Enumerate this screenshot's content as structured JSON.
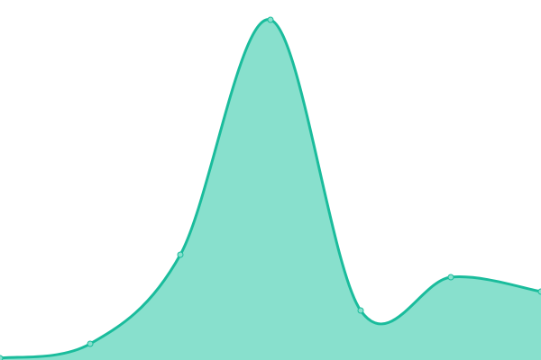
{
  "chart_data": {
    "type": "area",
    "title": "",
    "xlabel": "",
    "ylabel": "",
    "x": [
      0,
      1,
      2,
      3,
      4,
      5,
      6
    ],
    "series": [
      {
        "values": [
          2,
          18,
          117,
          378,
          55,
          92,
          76
        ]
      }
    ],
    "ylim": [
      0,
      400
    ],
    "xlim": [
      0,
      6
    ],
    "grid": false,
    "axes_visible": false,
    "smooth": true,
    "markers": true,
    "colors": {
      "line": "#1abc9c",
      "fill": "#88e0cd",
      "marker_fill": "#88e0cd"
    }
  }
}
